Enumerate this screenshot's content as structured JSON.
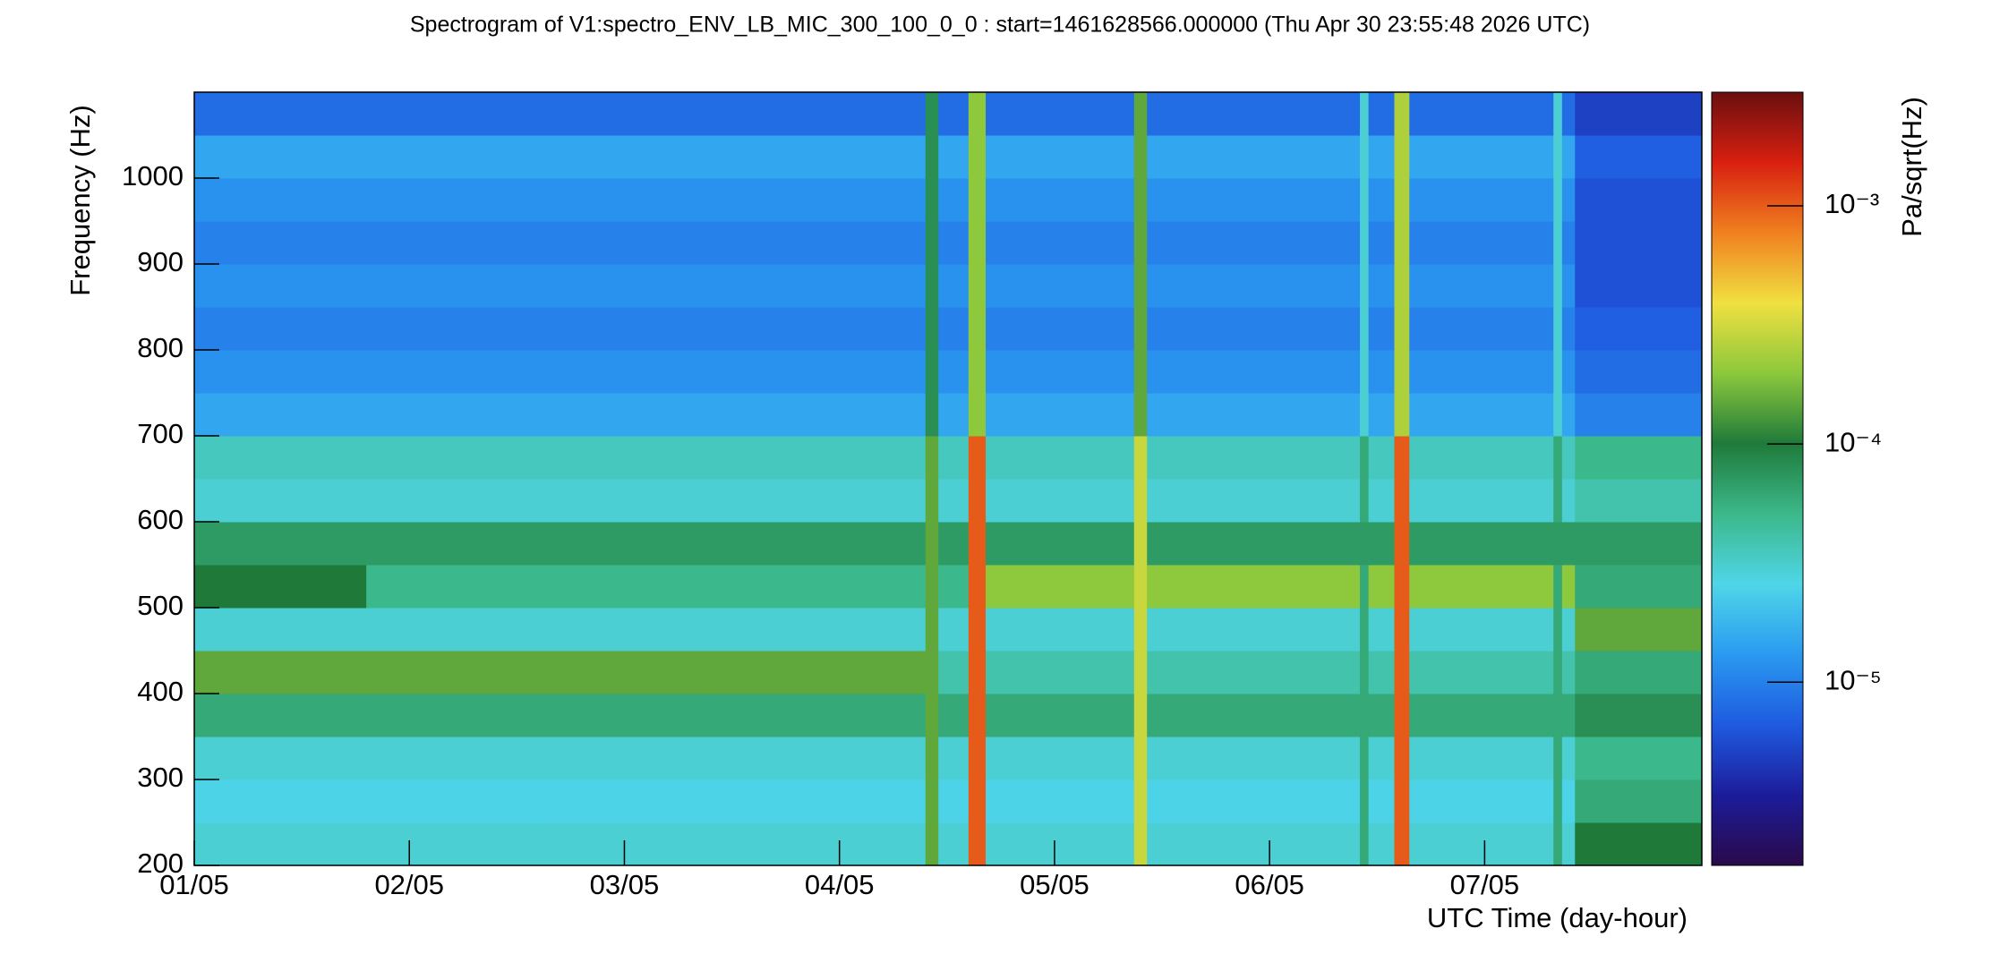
{
  "chart_data": {
    "type": "heatmap",
    "title": "Spectrogram of V1:spectro_ENV_LB_MIC_300_100_0_0 : start=1461628566.000000 (Thu Apr 30 23:55:48 2026 UTC)",
    "x_label": "UTC Time (day-hour)",
    "y_label": "Frequency (Hz)",
    "colorbar_label": "Pa/sqrt(Hz)",
    "xlim": [
      0,
      7.01
    ],
    "ylim": [
      200,
      1100
    ],
    "xticks": [
      {
        "value": 0,
        "label": "01/05"
      },
      {
        "value": 1,
        "label": "02/05"
      },
      {
        "value": 2,
        "label": "03/05"
      },
      {
        "value": 3,
        "label": "04/05"
      },
      {
        "value": 4,
        "label": "05/05"
      },
      {
        "value": 5,
        "label": "06/05"
      },
      {
        "value": 6,
        "label": "07/05"
      }
    ],
    "yticks": [
      200,
      300,
      400,
      500,
      600,
      700,
      800,
      900,
      1000
    ],
    "zlim": [
      1.7e-06,
      0.003
    ],
    "zscale": "log",
    "zticks": [
      {
        "value": 1e-05,
        "label": "10⁻⁵"
      },
      {
        "value": 0.0001,
        "label": "10⁻⁴"
      },
      {
        "value": 0.001,
        "label": "10⁻³"
      }
    ],
    "colorscale": [
      "#2a0a4a",
      "#1c1c9a",
      "#1f5ae0",
      "#2a9af0",
      "#4fd6e8",
      "#3cb88a",
      "#1f7a3a",
      "#8cc83c",
      "#f0e040",
      "#f08020",
      "#d82010",
      "#6a0f0f"
    ],
    "x_edges": [
      0,
      0.8,
      1.6,
      2.4,
      3.2,
      3.4,
      3.46,
      3.6,
      3.68,
      4.37,
      4.43,
      5.42,
      5.46,
      5.58,
      5.65,
      6.32,
      6.36,
      6.42,
      7.01
    ],
    "y_edges": [
      200,
      250,
      300,
      350,
      400,
      450,
      500,
      550,
      600,
      650,
      700,
      750,
      800,
      850,
      900,
      950,
      1000,
      1050,
      1100
    ],
    "z": [
      [
        3e-05,
        3e-05,
        3e-05,
        3e-05,
        3e-05,
        0.00015,
        3e-05,
        0.001,
        3e-05,
        0.0003,
        3e-05,
        6e-05,
        3e-05,
        0.001,
        3e-05,
        6e-05,
        3e-05,
        0.0001
      ],
      [
        2.5e-05,
        2.5e-05,
        2.5e-05,
        2.5e-05,
        2.5e-05,
        0.00015,
        2.5e-05,
        0.001,
        2.5e-05,
        0.0003,
        2.5e-05,
        6e-05,
        2.5e-05,
        0.001,
        2.5e-05,
        6e-05,
        2.5e-05,
        6e-05
      ],
      [
        3e-05,
        3e-05,
        3e-05,
        3e-05,
        3e-05,
        0.00015,
        3e-05,
        0.001,
        3e-05,
        0.0003,
        3e-05,
        6e-05,
        3e-05,
        0.001,
        3e-05,
        6e-05,
        3e-05,
        5e-05
      ],
      [
        6e-05,
        6e-05,
        6e-05,
        6e-05,
        6e-05,
        0.00015,
        6e-05,
        0.001,
        6e-05,
        0.0003,
        6e-05,
        6e-05,
        6e-05,
        0.001,
        6e-05,
        6e-05,
        6e-05,
        8e-05
      ],
      [
        0.00015,
        0.00015,
        0.00015,
        0.00015,
        0.00015,
        0.00015,
        4e-05,
        0.001,
        4e-05,
        0.0003,
        4e-05,
        6e-05,
        4e-05,
        0.001,
        4e-05,
        6e-05,
        4e-05,
        6e-05
      ],
      [
        3e-05,
        3e-05,
        3e-05,
        3e-05,
        3e-05,
        0.00015,
        3e-05,
        0.001,
        3e-05,
        0.0003,
        3e-05,
        6e-05,
        3e-05,
        0.001,
        3e-05,
        6e-05,
        3e-05,
        0.00015
      ],
      [
        0.0001,
        5e-05,
        5e-05,
        5e-05,
        5e-05,
        0.00015,
        5e-05,
        0.001,
        0.0002,
        0.0003,
        0.0002,
        6e-05,
        0.0002,
        0.001,
        0.0002,
        6e-05,
        0.0002,
        6e-05
      ],
      [
        7e-05,
        7e-05,
        7e-05,
        7e-05,
        7e-05,
        0.00015,
        7e-05,
        0.001,
        7e-05,
        0.0003,
        7e-05,
        7e-05,
        7e-05,
        0.001,
        7e-05,
        7e-05,
        7e-05,
        7e-05
      ],
      [
        3e-05,
        3e-05,
        3e-05,
        3e-05,
        3e-05,
        0.00015,
        3e-05,
        0.001,
        3e-05,
        0.0003,
        3e-05,
        6e-05,
        3e-05,
        0.001,
        3e-05,
        6e-05,
        3e-05,
        4e-05
      ],
      [
        3.5e-05,
        3.5e-05,
        3.5e-05,
        3.5e-05,
        3.5e-05,
        0.00015,
        3.5e-05,
        0.001,
        3.5e-05,
        0.0003,
        3.5e-05,
        6e-05,
        3.5e-05,
        0.001,
        3.5e-05,
        6e-05,
        3.5e-05,
        5e-05
      ],
      [
        1.5e-05,
        1.5e-05,
        1.5e-05,
        1.5e-05,
        1.5e-05,
        8e-05,
        1.5e-05,
        0.0002,
        1.5e-05,
        0.00015,
        1.5e-05,
        3e-05,
        1.5e-05,
        0.00025,
        1.5e-05,
        3e-05,
        1.5e-05,
        1e-05
      ],
      [
        1.2e-05,
        1.2e-05,
        1.2e-05,
        1.2e-05,
        1.2e-05,
        8e-05,
        1.2e-05,
        0.0002,
        1.2e-05,
        0.00015,
        1.2e-05,
        3e-05,
        1.2e-05,
        0.00025,
        1.2e-05,
        3e-05,
        1.2e-05,
        8e-06
      ],
      [
        1e-05,
        1e-05,
        1e-05,
        1e-05,
        1e-05,
        8e-05,
        1e-05,
        0.0002,
        1e-05,
        0.00015,
        1e-05,
        3e-05,
        1e-05,
        0.00025,
        1e-05,
        3e-05,
        1e-05,
        7e-06
      ],
      [
        1.2e-05,
        1.2e-05,
        1.2e-05,
        1.2e-05,
        1.2e-05,
        8e-05,
        1.2e-05,
        0.0002,
        1.2e-05,
        0.00015,
        1.2e-05,
        3e-05,
        1.2e-05,
        0.00025,
        1.2e-05,
        3e-05,
        1.2e-05,
        6e-06
      ],
      [
        1e-05,
        1e-05,
        1e-05,
        1e-05,
        1e-05,
        8e-05,
        1e-05,
        0.0002,
        1e-05,
        0.00015,
        1e-05,
        3e-05,
        1e-05,
        0.00025,
        1e-05,
        3e-05,
        1e-05,
        6e-06
      ],
      [
        1.2e-05,
        1.2e-05,
        1.2e-05,
        1.2e-05,
        1.2e-05,
        8e-05,
        1.2e-05,
        0.0002,
        1.2e-05,
        0.00015,
        1.2e-05,
        3e-05,
        1.2e-05,
        0.00025,
        1.2e-05,
        3e-05,
        1.2e-05,
        6e-06
      ],
      [
        1.5e-05,
        1.5e-05,
        1.5e-05,
        1.5e-05,
        1.5e-05,
        8e-05,
        1.5e-05,
        0.0002,
        1.5e-05,
        0.00015,
        1.5e-05,
        3e-05,
        1.5e-05,
        0.00025,
        1.5e-05,
        3e-05,
        1.5e-05,
        7e-06
      ],
      [
        8e-06,
        8e-06,
        8e-06,
        8e-06,
        8e-06,
        8e-05,
        8e-06,
        0.0002,
        8e-06,
        0.00015,
        8e-06,
        3e-05,
        8e-06,
        0.00025,
        8e-06,
        3e-05,
        8e-06,
        5e-06
      ]
    ]
  }
}
